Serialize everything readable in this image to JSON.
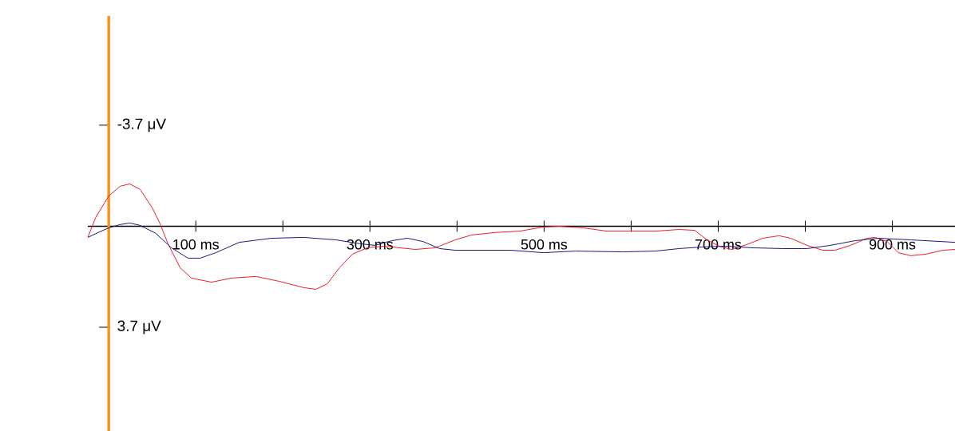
{
  "chart_data": {
    "type": "line",
    "xlim": [
      -24,
      972
    ],
    "ylim": [
      7.5,
      -7.7
    ],
    "xticks": [
      {
        "value": 100,
        "label": "100 ms"
      },
      {
        "value": 200,
        "label": null
      },
      {
        "value": 300,
        "label": "300 ms"
      },
      {
        "value": 400,
        "label": null
      },
      {
        "value": 500,
        "label": "500 ms"
      },
      {
        "value": 600,
        "label": null
      },
      {
        "value": 700,
        "label": "700 ms"
      },
      {
        "value": 800,
        "label": null
      },
      {
        "value": 900,
        "label": "900 ms"
      }
    ],
    "yticks": [
      {
        "value": -3.7,
        "label": "-3.7 μV"
      },
      {
        "value": 3.7,
        "label": "3.7 μV"
      }
    ],
    "grid": false,
    "marker": "none",
    "line_style": "solid",
    "series": [
      {
        "color": "#ee1c25",
        "x": [
          -24,
          -15,
          0,
          13,
          24,
          36,
          50,
          59,
          68,
          82,
          95,
          118,
          141,
          169,
          196,
          224,
          238,
          251,
          265,
          280,
          297,
          316,
          352,
          375,
          398,
          417,
          444,
          472,
          499,
          517,
          545,
          572,
          600,
          628,
          655,
          673,
          687,
          701,
          715,
          733,
          751,
          770,
          783,
          802,
          820,
          834,
          852,
          871,
          880,
          894,
          907,
          921,
          939,
          958,
          972
        ],
        "values": [
          0.41,
          -0.32,
          -1.11,
          -1.46,
          -1.55,
          -1.35,
          -0.67,
          -0.09,
          0.64,
          1.52,
          1.9,
          2.05,
          1.9,
          1.84,
          2.02,
          2.25,
          2.31,
          2.11,
          1.52,
          1.02,
          0.79,
          0.73,
          0.85,
          0.79,
          0.5,
          0.32,
          0.23,
          0.18,
          0.03,
          0,
          0.06,
          0.18,
          0.18,
          0.18,
          0.12,
          0.15,
          0.5,
          0.73,
          0.85,
          0.67,
          0.44,
          0.35,
          0.44,
          0.7,
          0.88,
          0.88,
          0.7,
          0.44,
          0.41,
          0.56,
          0.97,
          1.08,
          1.02,
          0.88,
          0.85
        ]
      },
      {
        "color": "#1a1a7a",
        "x": [
          -24,
          -10,
          0,
          13,
          24,
          36,
          54,
          72,
          91,
          105,
          123,
          150,
          187,
          224,
          261,
          288,
          306,
          325,
          343,
          361,
          380,
          398,
          426,
          462,
          499,
          536,
          591,
          628,
          655,
          682,
          710,
          738,
          774,
          802,
          829,
          857,
          884,
          921,
          972
        ],
        "values": [
          0.41,
          0.2,
          0.06,
          -0.06,
          -0.12,
          -0.03,
          0.26,
          0.79,
          1.17,
          1.17,
          0.97,
          0.59,
          0.44,
          0.41,
          0.5,
          0.64,
          0.7,
          0.53,
          0.44,
          0.56,
          0.82,
          0.88,
          0.88,
          0.88,
          0.97,
          0.91,
          0.94,
          0.91,
          0.82,
          0.76,
          0.73,
          0.79,
          0.82,
          0.82,
          0.7,
          0.53,
          0.44,
          0.5,
          0.59
        ]
      }
    ]
  }
}
